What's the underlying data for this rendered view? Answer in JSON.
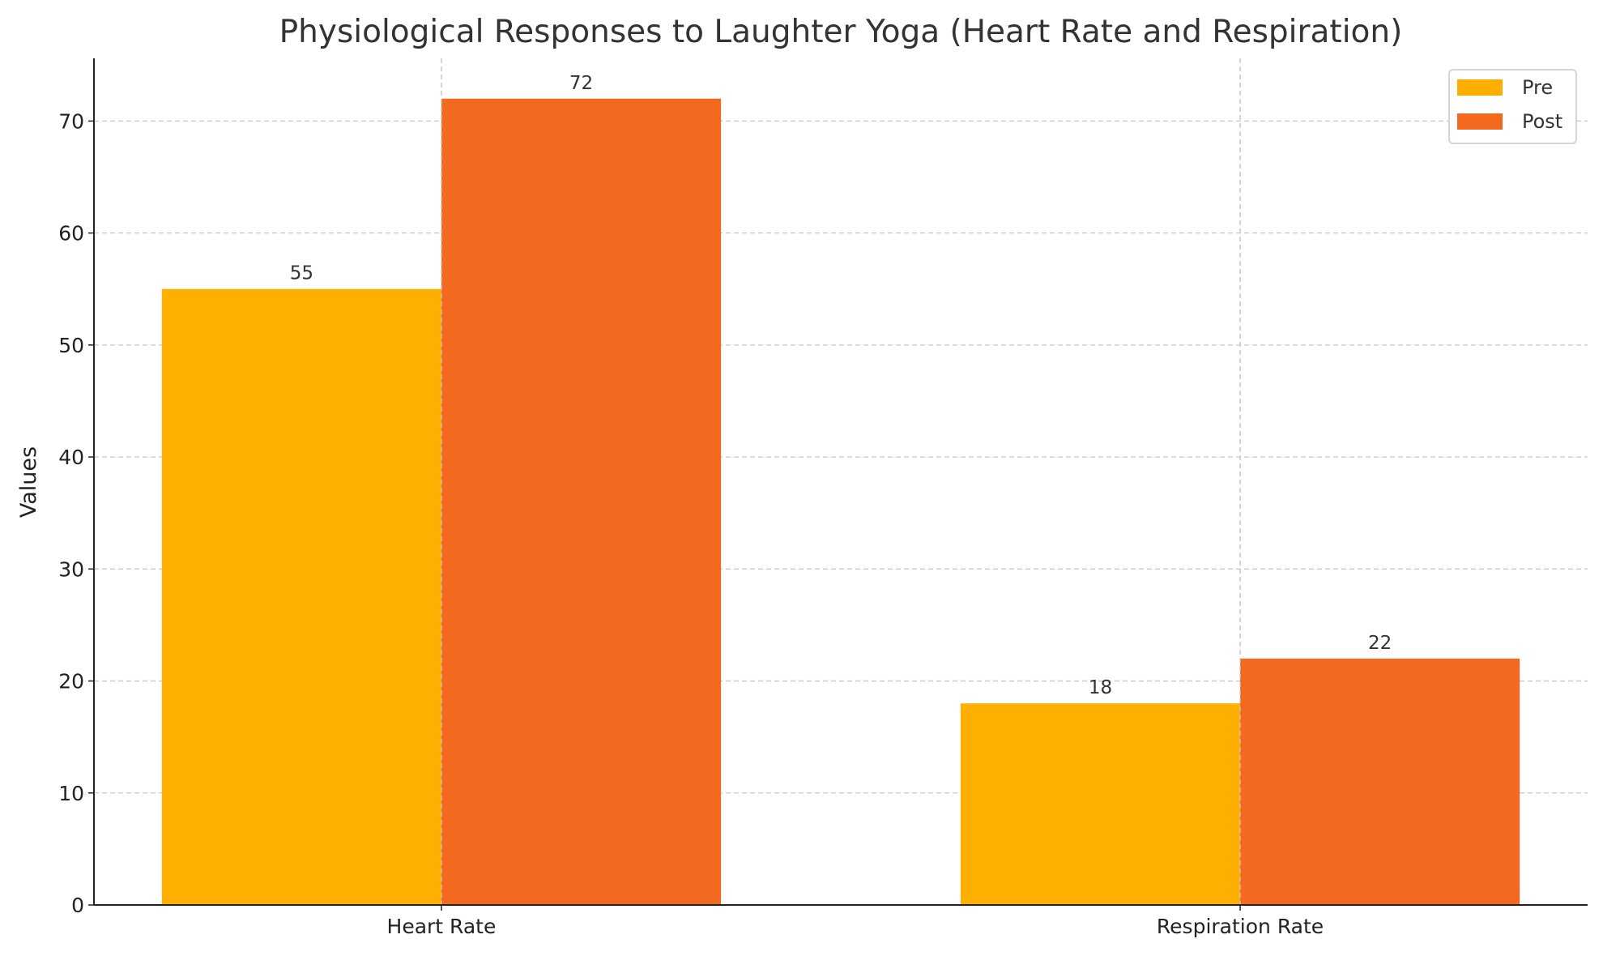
{
  "chart_data": {
    "type": "bar",
    "title": "Physiological Responses to Laughter Yoga (Heart Rate and Respiration)",
    "xlabel": "",
    "ylabel": "Values",
    "categories": [
      "Heart Rate",
      "Respiration Rate"
    ],
    "series": [
      {
        "name": "Pre",
        "values": [
          55,
          18
        ],
        "color": "#FFAF00"
      },
      {
        "name": "Post",
        "values": [
          72,
          22
        ],
        "color": "#F46920"
      }
    ],
    "ylim": [
      0,
      75.6
    ],
    "yticks": [
      0,
      10,
      20,
      30,
      40,
      50,
      60,
      70
    ],
    "grid": true,
    "legend": "top-right",
    "data_labels": true
  }
}
